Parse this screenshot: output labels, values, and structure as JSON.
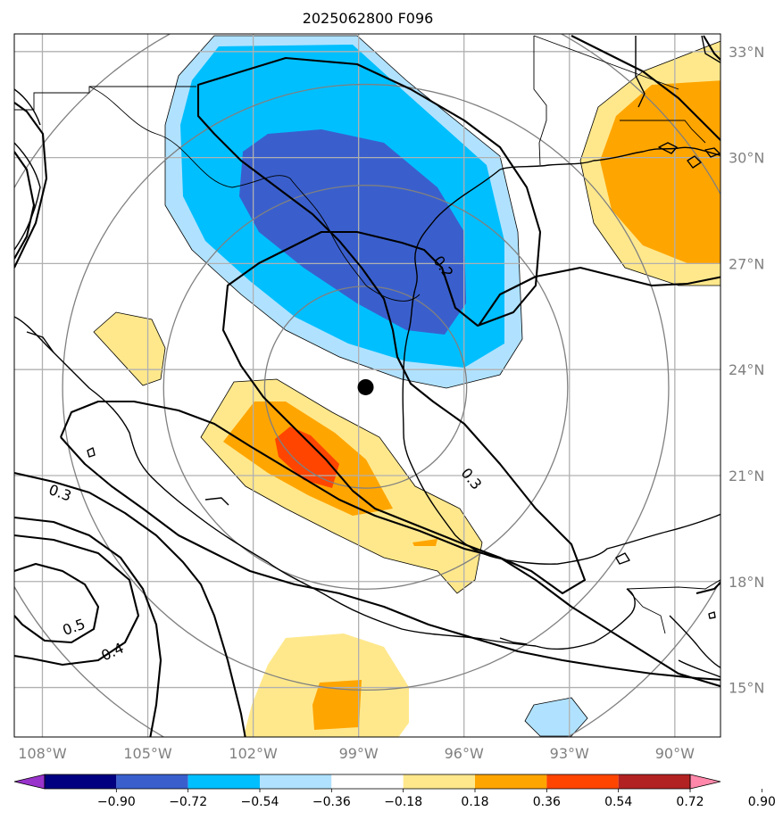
{
  "title": "2025062800 F096",
  "map": {
    "lon_range": [
      -108.8,
      -88.7
    ],
    "lat_range": [
      13.6,
      33.5
    ],
    "center_marker": {
      "lon": -98.8,
      "lat": 23.5
    },
    "lon_ticks": [
      {
        "value": -108,
        "label": "108°W"
      },
      {
        "value": -105,
        "label": "105°W"
      },
      {
        "value": -102,
        "label": "102°W"
      },
      {
        "value": -99,
        "label": "99°W"
      },
      {
        "value": -96,
        "label": "96°W"
      },
      {
        "value": -93,
        "label": "93°W"
      },
      {
        "value": -90,
        "label": "90°W"
      }
    ],
    "lat_ticks": [
      {
        "value": 33,
        "label": "33°N"
      },
      {
        "value": 30,
        "label": "30°N"
      },
      {
        "value": 27,
        "label": "27°N"
      },
      {
        "value": 24,
        "label": "24°N"
      },
      {
        "value": 21,
        "label": "21°N"
      },
      {
        "value": 18,
        "label": "18°N"
      },
      {
        "value": 15,
        "label": "15°N"
      }
    ],
    "range_rings_deg": [
      2.5,
      5,
      7.5,
      10
    ],
    "contour_labels": [
      {
        "text": "0.2",
        "lon": -96.6,
        "lat": 26.9,
        "angle": 55
      },
      {
        "text": "0.3",
        "lon": -95.8,
        "lat": 20.9,
        "angle": 50
      },
      {
        "text": "0.3",
        "lon": -107.5,
        "lat": 20.5,
        "angle": 20
      },
      {
        "text": "0.5",
        "lon": -107.1,
        "lat": 16.7,
        "angle": -20
      },
      {
        "text": "0.4",
        "lon": -106.0,
        "lat": 16.0,
        "angle": -25
      }
    ]
  },
  "colorbar": {
    "colors": [
      "#9933cc",
      "#000080",
      "#3a5fcd",
      "#00bfff",
      "#b0e2ff",
      "#ffffff",
      "#ffe88c",
      "#ffa500",
      "#ff4500",
      "#b22222",
      "#ff88aa"
    ],
    "labels": [
      "−0.90",
      "−0.72",
      "−0.54",
      "−0.36",
      "−0.18",
      "0.18",
      "0.36",
      "0.54",
      "0.72",
      "0.90"
    ]
  },
  "fill_colors": {
    "light_blue": "#b0e2ff",
    "blue": "#00bfff",
    "dark_blue": "#3a5fcd",
    "yellow": "#ffe88c",
    "orange": "#ffa500",
    "red": "#ff4500"
  }
}
